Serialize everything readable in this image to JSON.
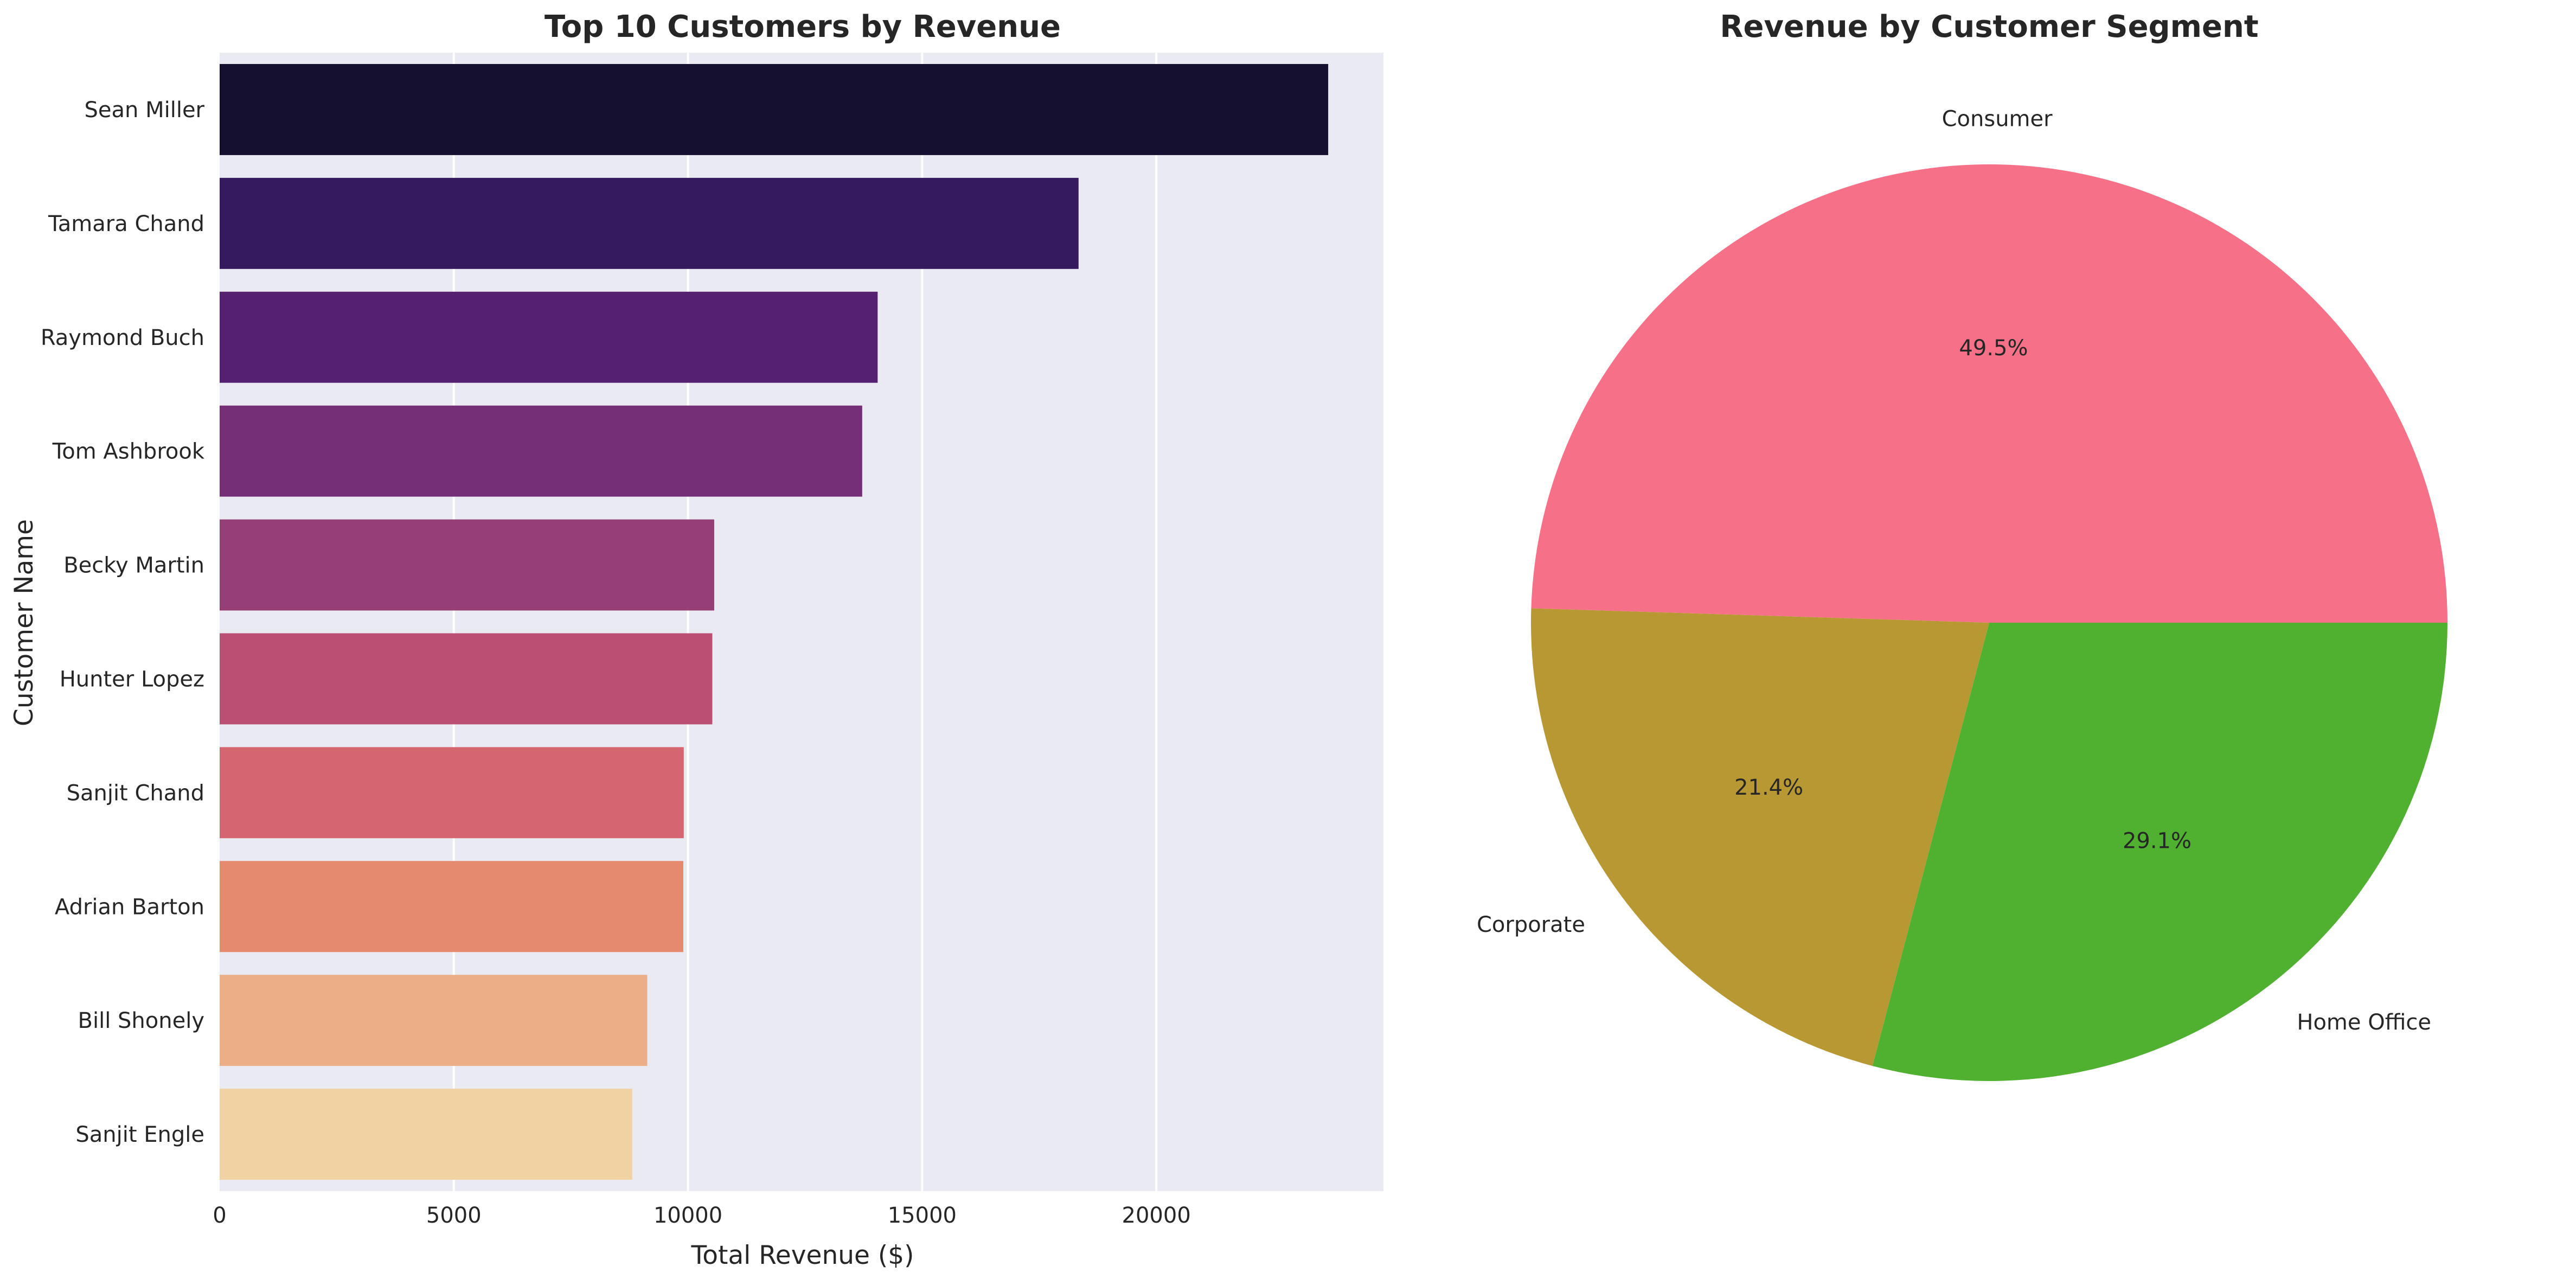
{
  "chart_data": [
    {
      "type": "bar",
      "orientation": "horizontal",
      "title": "Top 10 Customers by Revenue",
      "xlabel": "Total Revenue ($)",
      "ylabel": "Customer Name",
      "categories": [
        "Sean Miller",
        "Tamara Chand",
        "Raymond Buch",
        "Tom Ashbrook",
        "Becky Martin",
        "Hunter Lopez",
        "Sanjit Chand",
        "Adrian Barton",
        "Bill Shonely",
        "Sanjit Engle"
      ],
      "values": [
        23670,
        18340,
        14050,
        13720,
        10560,
        10520,
        9910,
        9900,
        9130,
        8810
      ],
      "colors": [
        "#150f30",
        "#361a5f",
        "#55206f",
        "#752f77",
        "#963f76",
        "#ba4f73",
        "#d5656e",
        "#e68a6f",
        "#ebae86",
        "#f1d2a3"
      ],
      "xlim": [
        0,
        24850
      ],
      "xticks": [
        0,
        5000,
        10000,
        15000,
        20000
      ],
      "xtick_labels": [
        "0",
        "5000",
        "10000",
        "15000",
        "20000"
      ],
      "grid": true,
      "background": "#eaeaf2"
    },
    {
      "type": "pie",
      "title": "Revenue by Customer Segment",
      "labels": [
        "Consumer",
        "Corporate",
        "Home Office"
      ],
      "values": [
        49.5,
        21.4,
        29.1
      ],
      "value_labels": [
        "49.5%",
        "21.4%",
        "29.1%"
      ],
      "colors": [
        "#f67088",
        "#b89833",
        "#50b131"
      ]
    }
  ]
}
